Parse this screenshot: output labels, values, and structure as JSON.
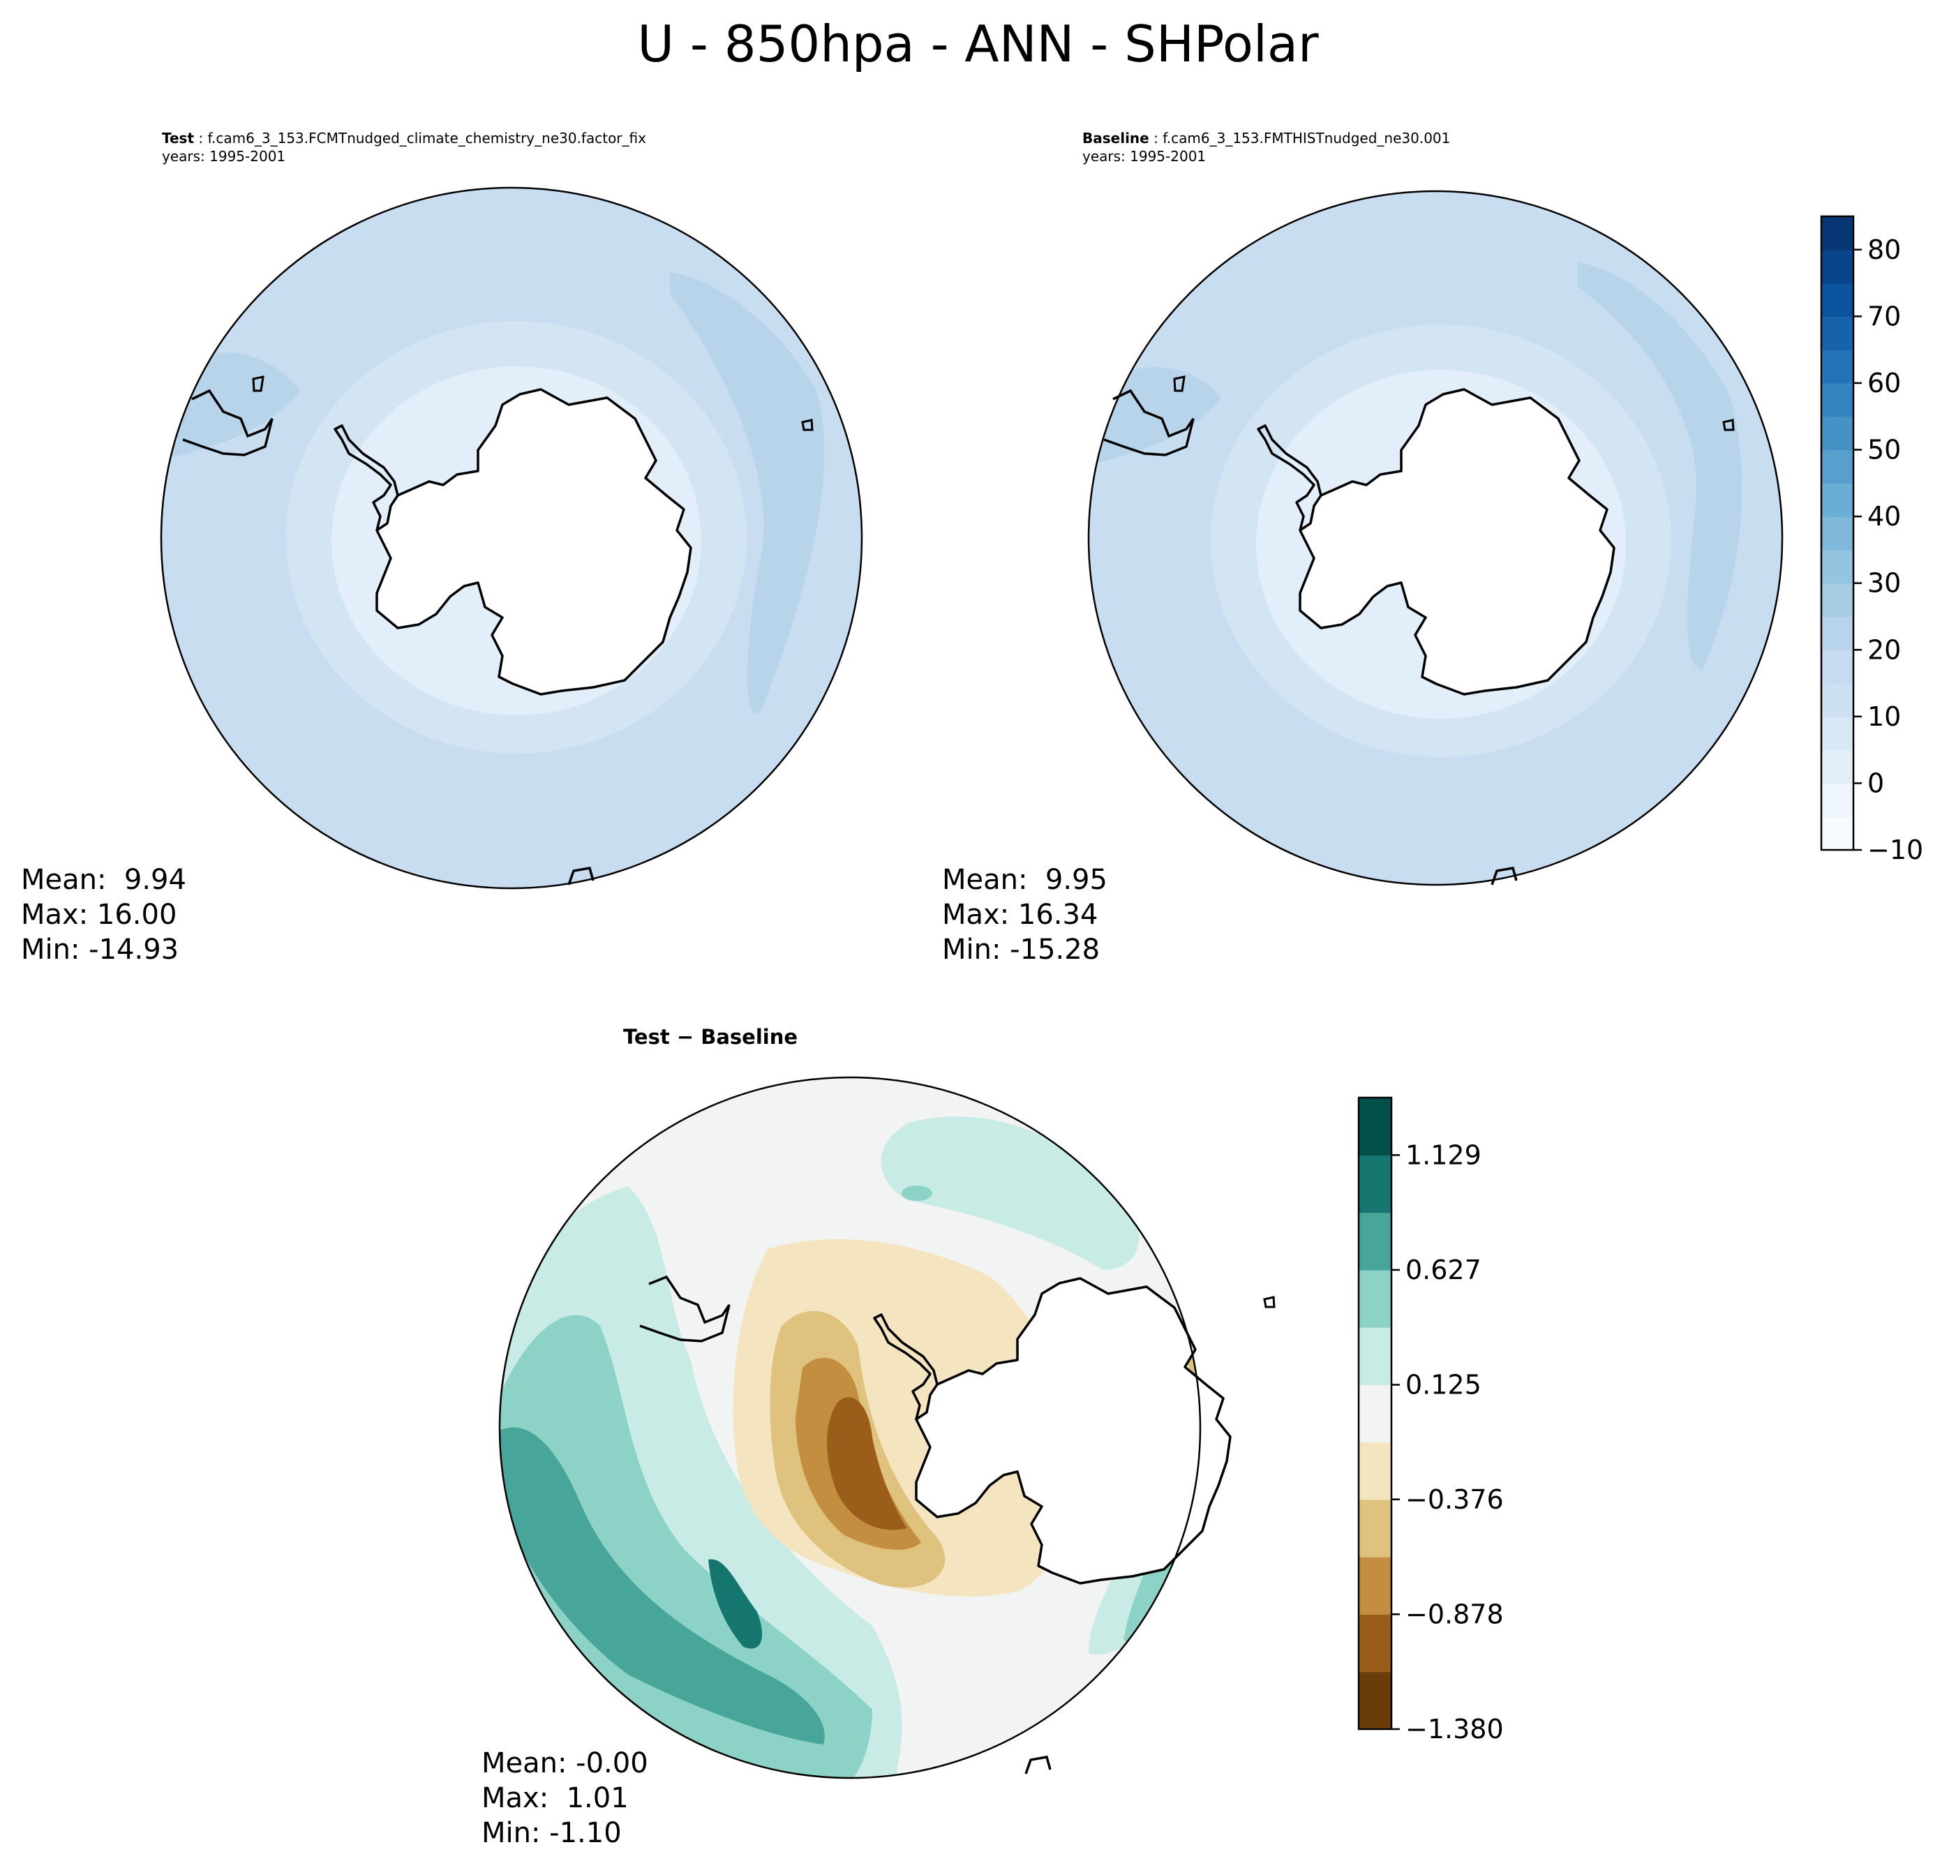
{
  "figure": {
    "title": "U - 850hpa - ANN - SHPolar"
  },
  "panels": [
    {
      "id": "test",
      "label": "Test",
      "case": "f.cam6_3_153.FCMTnudged_climate_chemistry_ne30.factor_fix",
      "years": "years: 1995-2001",
      "stats": {
        "mean": "Mean:  9.94",
        "max": "Max: 16.00",
        "min": "Min: -14.93"
      }
    },
    {
      "id": "baseline",
      "label": "Baseline",
      "case": "f.cam6_3_153.FMTHISTnudged_ne30.001",
      "years": "years: 1995-2001",
      "stats": {
        "mean": "Mean:  9.95",
        "max": "Max: 16.34",
        "min": "Min: -15.28"
      }
    },
    {
      "id": "diff",
      "label": "Test − Baseline",
      "stats": {
        "mean": "Mean: -0.00",
        "max": "Max:  1.01",
        "min": "Min: -1.10"
      }
    }
  ],
  "chart_data": [
    {
      "type": "heatmap",
      "projection": "south-polar-stereographic",
      "panel": "test",
      "colormap": "Blues",
      "levels": [
        -10,
        -5,
        0,
        5,
        10,
        15,
        20,
        25,
        30,
        35,
        40,
        45,
        50,
        55,
        60,
        65,
        70,
        75,
        80,
        85
      ],
      "colorbar_ticks": [
        -10,
        0,
        10,
        20,
        30,
        40,
        50,
        60,
        70,
        80
      ],
      "stats": {
        "mean": 9.94,
        "max": 16.0,
        "min": -14.93
      }
    },
    {
      "type": "heatmap",
      "projection": "south-polar-stereographic",
      "panel": "baseline",
      "colormap": "Blues",
      "levels": [
        -10,
        -5,
        0,
        5,
        10,
        15,
        20,
        25,
        30,
        35,
        40,
        45,
        50,
        55,
        60,
        65,
        70,
        75,
        80,
        85
      ],
      "colorbar_ticks": [
        -10,
        0,
        10,
        20,
        30,
        40,
        50,
        60,
        70,
        80
      ],
      "stats": {
        "mean": 9.95,
        "max": 16.34,
        "min": -15.28
      }
    },
    {
      "type": "heatmap",
      "projection": "south-polar-stereographic",
      "panel": "diff",
      "colormap": "BrBG",
      "levels": [
        -1.38,
        -1.129,
        -0.878,
        -0.627,
        -0.376,
        -0.125,
        0.125,
        0.376,
        0.627,
        0.878,
        1.129,
        1.38
      ],
      "colorbar_ticks": [
        -1.38,
        -0.878,
        -0.376,
        0.125,
        0.627,
        1.129
      ],
      "colorbar_tick_labels": [
        "−1.380",
        "−0.878",
        "−0.376",
        "0.125",
        "0.627",
        "1.129"
      ],
      "stats": {
        "mean": -0.0,
        "max": 1.01,
        "min": -1.1
      }
    }
  ],
  "colors": {
    "blues": [
      "#f7fbff",
      "#eef5fc",
      "#e3eef9",
      "#d9e8f5",
      "#cee1f2",
      "#c6dbef",
      "#b7d4ea",
      "#a7cde3",
      "#94c4df",
      "#7fb8da",
      "#6aaed6",
      "#57a0ce",
      "#4592c6",
      "#3383be",
      "#2373b6",
      "#1763aa",
      "#0b549d",
      "#08458a",
      "#083776"
    ],
    "brbg": [
      "#6a3d08",
      "#9b5e1a",
      "#c38e40",
      "#dfc27d",
      "#f4e5c0",
      "#f2f4f3",
      "#c9ebe5",
      "#8dd2c7",
      "#48a59a",
      "#15766f",
      "#03504a"
    ]
  }
}
